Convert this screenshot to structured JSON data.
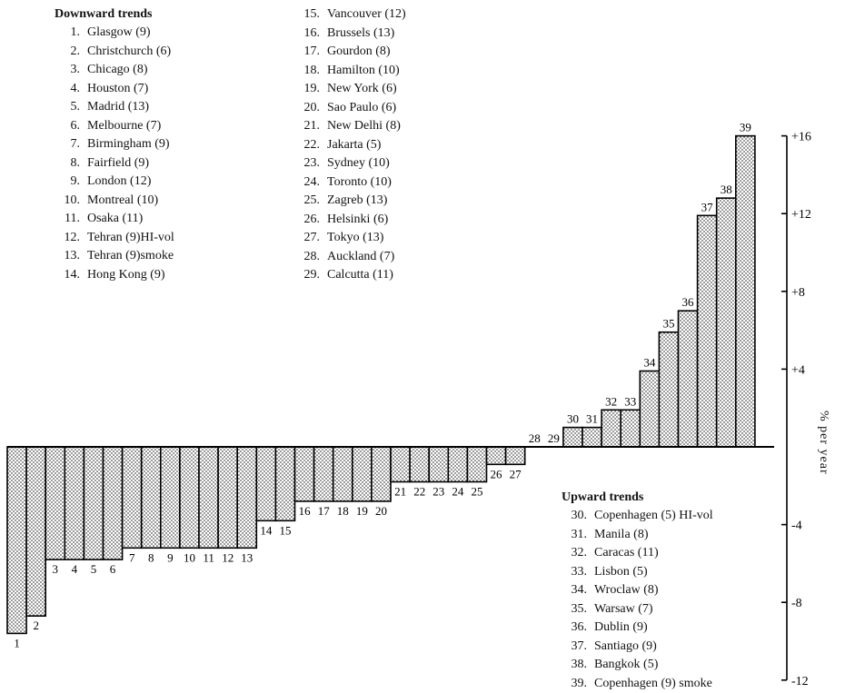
{
  "chart_data": {
    "type": "bar",
    "ylabel": "% per year",
    "ylim": [
      -12,
      16
    ],
    "yticks": [
      "+16",
      "+12",
      "+8",
      "+4",
      "-4",
      "-8",
      "-12"
    ],
    "ytick_values": [
      16,
      12,
      8,
      4,
      -4,
      -8,
      -12
    ],
    "categories": [
      "1",
      "2",
      "3",
      "4",
      "5",
      "6",
      "7",
      "8",
      "9",
      "10",
      "11",
      "12",
      "13",
      "14",
      "15",
      "16",
      "17",
      "18",
      "19",
      "20",
      "21",
      "22",
      "23",
      "24",
      "25",
      "26",
      "27",
      "28",
      "29",
      "30",
      "31",
      "32",
      "33",
      "34",
      "35",
      "36",
      "37",
      "38",
      "39"
    ],
    "values": [
      -9.6,
      -8.7,
      -5.8,
      -5.8,
      -5.8,
      -5.8,
      -5.2,
      -5.2,
      -5.2,
      -5.2,
      -5.2,
      -5.2,
      -5.2,
      -3.8,
      -3.8,
      -2.8,
      -2.8,
      -2.8,
      -2.8,
      -2.8,
      -1.8,
      -1.8,
      -1.8,
      -1.8,
      -1.8,
      -0.9,
      -0.9,
      0.0,
      0.0,
      1.0,
      1.0,
      1.9,
      1.9,
      3.9,
      5.9,
      7.0,
      11.9,
      12.8,
      16.0
    ],
    "legend_downward": {
      "title": "Downward trends",
      "items": [
        {
          "num": "1.",
          "label": "Glasgow (9)"
        },
        {
          "num": "2.",
          "label": "Christchurch (6)"
        },
        {
          "num": "3.",
          "label": "Chicago (8)"
        },
        {
          "num": "4.",
          "label": "Houston (7)"
        },
        {
          "num": "5.",
          "label": "Madrid (13)"
        },
        {
          "num": "6.",
          "label": "Melbourne (7)"
        },
        {
          "num": "7.",
          "label": "Birmingham (9)"
        },
        {
          "num": "8.",
          "label": "Fairfield (9)"
        },
        {
          "num": "9.",
          "label": "London (12)"
        },
        {
          "num": "10.",
          "label": "Montreal (10)"
        },
        {
          "num": "11.",
          "label": "Osaka (11)"
        },
        {
          "num": "12.",
          "label": "Tehran (9)HI-vol"
        },
        {
          "num": "13.",
          "label": "Tehran (9)smoke"
        },
        {
          "num": "14.",
          "label": "Hong Kong (9)"
        },
        {
          "num": "15.",
          "label": "Vancouver (12)"
        },
        {
          "num": "16.",
          "label": "Brussels (13)"
        },
        {
          "num": "17.",
          "label": "Gourdon (8)"
        },
        {
          "num": "18.",
          "label": "Hamilton (10)"
        },
        {
          "num": "19.",
          "label": "New York (6)"
        },
        {
          "num": "20.",
          "label": "Sao Paulo (6)"
        },
        {
          "num": "21.",
          "label": "New Delhi (8)"
        },
        {
          "num": "22.",
          "label": "Jakarta (5)"
        },
        {
          "num": "23.",
          "label": "Sydney (10)"
        },
        {
          "num": "24.",
          "label": "Toronto (10)"
        },
        {
          "num": "25.",
          "label": "Zagreb (13)"
        },
        {
          "num": "26.",
          "label": "Helsinki (6)"
        },
        {
          "num": "27.",
          "label": "Tokyo (13)"
        },
        {
          "num": "28.",
          "label": "Auckland (7)"
        },
        {
          "num": "29.",
          "label": "Calcutta (11)"
        }
      ]
    },
    "legend_upward": {
      "title": "Upward trends",
      "items": [
        {
          "num": "30.",
          "label": "Copenhagen (5) HI-vol"
        },
        {
          "num": "31.",
          "label": "Manila (8)"
        },
        {
          "num": "32.",
          "label": "Caracas (11)"
        },
        {
          "num": "33.",
          "label": "Lisbon (5)"
        },
        {
          "num": "34.",
          "label": "Wroclaw (8)"
        },
        {
          "num": "35.",
          "label": "Warsaw (7)"
        },
        {
          "num": "36.",
          "label": "Dublin (9)"
        },
        {
          "num": "37.",
          "label": "Santiago (9)"
        },
        {
          "num": "38.",
          "label": "Bangkok (5)"
        },
        {
          "num": "39.",
          "label": "Copenhagen (9) smoke"
        }
      ]
    }
  }
}
